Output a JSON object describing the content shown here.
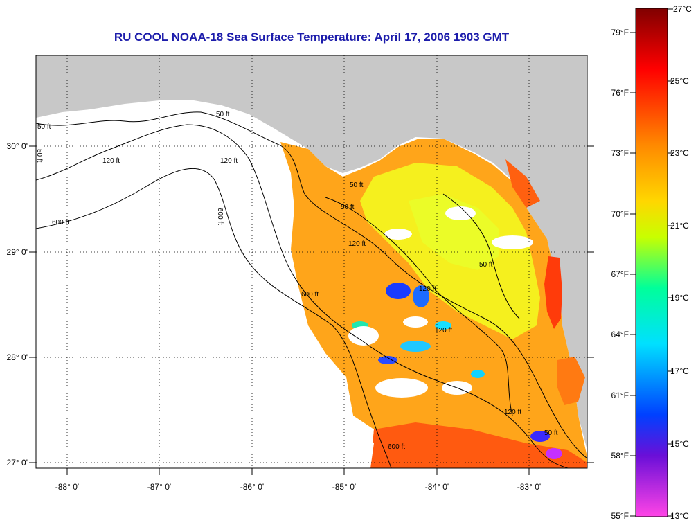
{
  "title": "RU COOL  NOAA-18  Sea Surface Temperature:  April 17, 2006 1903 GMT",
  "map": {
    "lon_labels": [
      "-88° 0'",
      "-87° 0'",
      "-86° 0'",
      "-85° 0'",
      "-84° 0'",
      "-83° 0'"
    ],
    "lat_labels": [
      "30° 0'",
      "29° 0'",
      "28° 0'",
      "27° 0'"
    ],
    "contour_labels": [
      "50 ft",
      "50 ft",
      "120 ft",
      "600 ft",
      "600 ft",
      "120 ft",
      "50 ft",
      "600 ft",
      "50 ft",
      "120 ft",
      "120 ft",
      "50 ft",
      "600 ft",
      "120 ft",
      "50 ft",
      "120 ft",
      "50 ft"
    ]
  },
  "colorbar": {
    "fahrenheit_labels": [
      "79°F",
      "76°F",
      "73°F",
      "70°F",
      "67°F",
      "64°F",
      "61°F",
      "58°F",
      "55°F"
    ],
    "celsius_labels": [
      "27°C",
      "25°C",
      "23°C",
      "21°C",
      "19°C",
      "17°C",
      "15°C",
      "13°C"
    ],
    "colors": [
      "#800000",
      "#ff0000",
      "#ff8a00",
      "#ffd700",
      "#c8ff00",
      "#00ff9a",
      "#00e0ff",
      "#0040ff",
      "#6a0fd8",
      "#ff44e6"
    ]
  }
}
